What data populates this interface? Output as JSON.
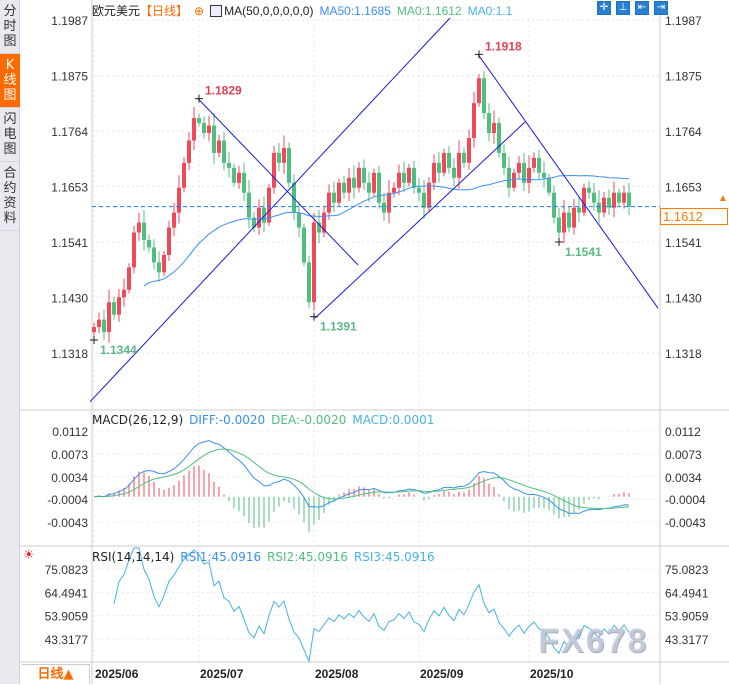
{
  "sidebar": {
    "items": [
      {
        "label": "分时图",
        "active": false
      },
      {
        "label": "K线图",
        "active": true
      },
      {
        "label": "闪电图",
        "active": false
      },
      {
        "label": "合约资料",
        "active": false
      }
    ]
  },
  "header": {
    "symbol": "欧元美元",
    "period": "【日线】",
    "target_icon": "crosshair-target-icon",
    "ma_icon": "ma-settings-icon",
    "ma_label": "MA(50,0,0,0,0,0)",
    "ma50": "MA50:1.1685",
    "ma0a": "MA0:1.1612",
    "ma0b": "MA0:1.1",
    "toolbar": [
      {
        "icon": "crosshair-icon",
        "glyph": "✛"
      },
      {
        "icon": "fit-range-icon",
        "glyph": "⊥"
      },
      {
        "icon": "step-back-icon",
        "glyph": "⇤"
      },
      {
        "icon": "jump-latest-icon",
        "glyph": "⇥"
      }
    ]
  },
  "colors": {
    "up": "#f04a5a",
    "down": "#4fbf80",
    "ma50": "#3b8ff0",
    "trendline": "#1a1ad8",
    "diff": "#3b8ff0",
    "dea": "#4fbf80",
    "rsi": "#45b3e8",
    "current": "#1e7be8",
    "accent": "#ff6a00"
  },
  "macd": {
    "label": "MACD(26,12,9)",
    "diff": "DIFF:-0.0020",
    "dea": "DEA:-0.0020",
    "macd": "MACD:0.0001",
    "ticks": [
      "0.0112",
      "0.0073",
      "0.0034",
      "-0.0004",
      "-0.0043"
    ],
    "tick_values": [
      0.0112,
      0.0073,
      0.0034,
      -0.0004,
      -0.0043
    ]
  },
  "rsi": {
    "label": "RSI(14,14,14)",
    "rsi1": "RSI1:45.0916",
    "rsi2": "RSI2:45.0916",
    "rsi3": "RSI3:45.0916",
    "ticks": [
      "75.0823",
      "64.4941",
      "53.9059",
      "43.3177"
    ],
    "tick_values": [
      75.0823,
      64.4941,
      53.9059,
      43.3177
    ],
    "icon": "sun-indicator-icon"
  },
  "bottom": {
    "mode": "日线▲",
    "watermark": "FX678"
  },
  "chart_data": {
    "type": "candlestick",
    "y_ticks": [
      "1.1987",
      "1.1875",
      "1.1764",
      "1.1653",
      "1.1541",
      "1.1430",
      "1.1318"
    ],
    "y_tick_values": [
      1.1987,
      1.1875,
      1.1764,
      1.1653,
      1.1541,
      1.143,
      1.1318
    ],
    "ylim": [
      1.1318,
      1.1987
    ],
    "x_ticks": [
      {
        "label": "2025/06",
        "index": 0
      },
      {
        "label": "2025/07",
        "index": 21
      },
      {
        "label": "2025/08",
        "index": 44
      },
      {
        "label": "2025/09",
        "index": 65
      },
      {
        "label": "2025/10",
        "index": 87
      }
    ],
    "current_price": 1.1612,
    "current_price_label": "1.1612",
    "closes": [
      1.137,
      1.1385,
      1.136,
      1.142,
      1.1395,
      1.143,
      1.1445,
      1.149,
      1.156,
      1.158,
      1.1545,
      1.153,
      1.15,
      1.148,
      1.1515,
      1.157,
      1.16,
      1.165,
      1.17,
      1.1745,
      1.179,
      1.178,
      1.176,
      1.1775,
      1.172,
      1.1745,
      1.17,
      1.169,
      1.166,
      1.168,
      1.164,
      1.159,
      1.157,
      1.161,
      1.158,
      1.165,
      1.172,
      1.17,
      1.173,
      1.166,
      1.16,
      1.157,
      1.15,
      1.142,
      1.158,
      1.156,
      1.16,
      1.164,
      1.162,
      1.166,
      1.164,
      1.167,
      1.165,
      1.169,
      1.166,
      1.164,
      1.168,
      1.162,
      1.16,
      1.164,
      1.165,
      1.168,
      1.166,
      1.169,
      1.165,
      1.164,
      1.161,
      1.166,
      1.17,
      1.168,
      1.172,
      1.169,
      1.167,
      1.172,
      1.17,
      1.175,
      1.182,
      1.187,
      1.18,
      1.176,
      1.178,
      1.172,
      1.169,
      1.165,
      1.168,
      1.17,
      1.166,
      1.169,
      1.171,
      1.168,
      1.167,
      1.164,
      1.159,
      1.156,
      1.16,
      1.157,
      1.161,
      1.16,
      1.165,
      1.164,
      1.162,
      1.16,
      1.163,
      1.161,
      1.164,
      1.162,
      1.164,
      1.1612
    ],
    "annotations": [
      {
        "label": "1.1829",
        "index": 21,
        "price": 1.1829,
        "kind": "high"
      },
      {
        "label": "1.1918",
        "index": 77,
        "price": 1.1918,
        "kind": "high"
      },
      {
        "label": "1.1344",
        "index": 0,
        "price": 1.1344,
        "kind": "low"
      },
      {
        "label": "1.1391",
        "index": 44,
        "price": 1.1391,
        "kind": "low"
      },
      {
        "label": "1.1541",
        "index": 93,
        "price": 1.1541,
        "kind": "low"
      }
    ],
    "trendlines": [
      {
        "from": [
          -0.8,
          1.122
        ],
        "to": [
          71.2,
          1.1991
        ]
      },
      {
        "from": [
          44.2,
          1.1388
        ],
        "to": [
          86.2,
          1.1782
        ]
      },
      {
        "from": [
          20.8,
          1.1829
        ],
        "to": [
          52.8,
          1.1495
        ]
      },
      {
        "from": [
          76.8,
          1.1918
        ],
        "to": [
          112.8,
          1.1408
        ]
      }
    ]
  }
}
